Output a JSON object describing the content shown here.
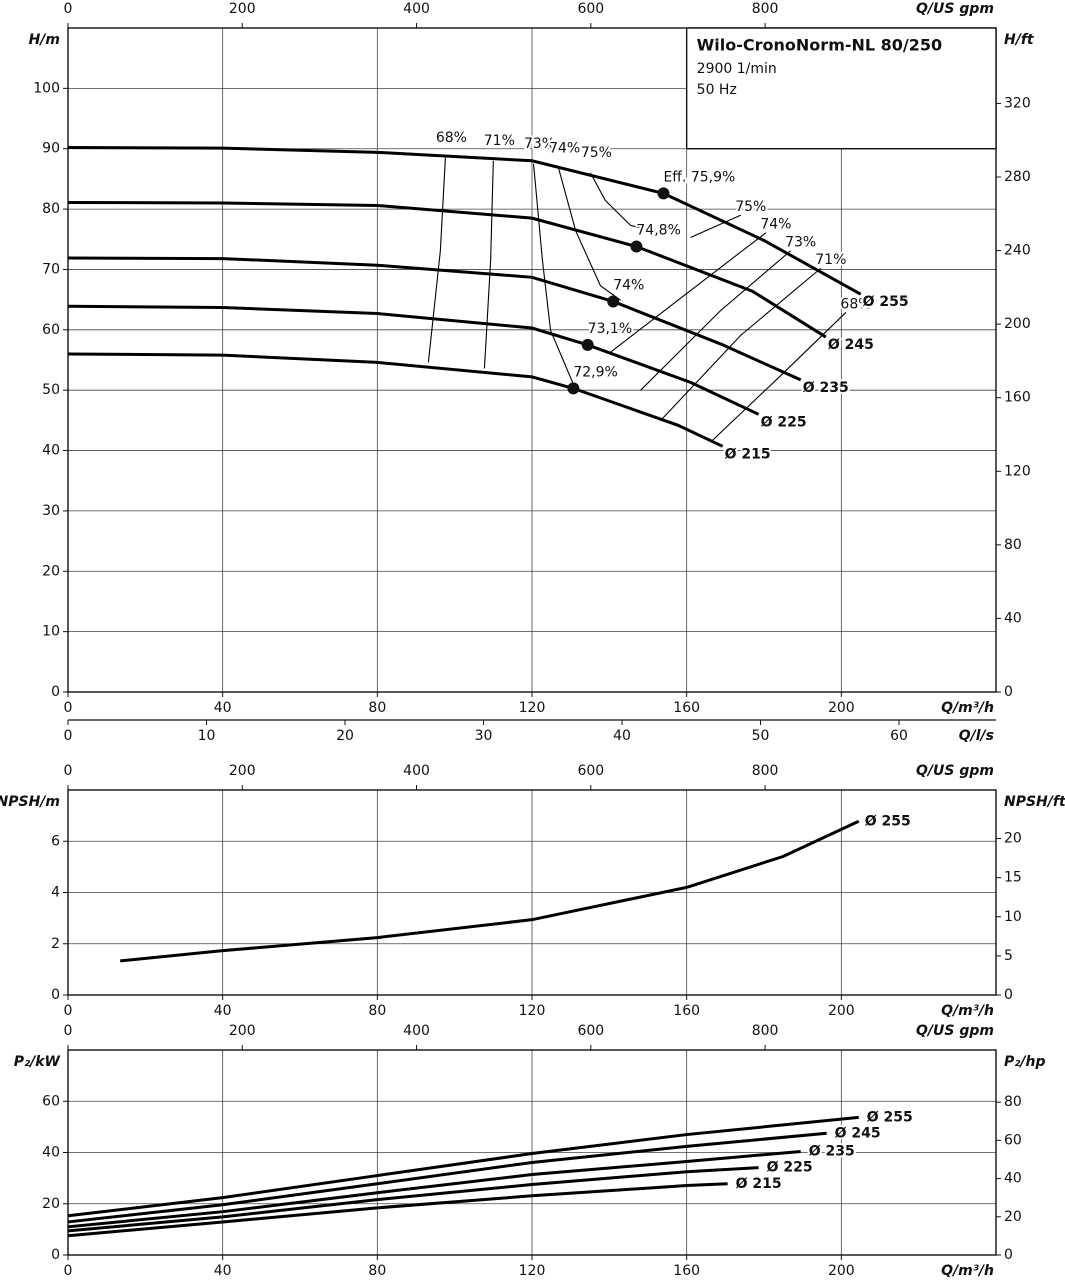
{
  "chart_data": [
    {
      "type": "line",
      "title": "Wilo-CronoNorm-NL 80/250",
      "speed": "2900 1/min",
      "frequency": "50 Hz",
      "xlabel": "Q/m³/h",
      "ylabel": "H/m",
      "x2label": "Q/US gpm",
      "x3label": "Q/l/s",
      "y2label": "H/ft",
      "xlim": [
        0,
        240
      ],
      "xticks": [
        0,
        40,
        80,
        120,
        160,
        200
      ],
      "x2lim": [
        0,
        1065
      ],
      "x2ticks": [
        0,
        200,
        400,
        600,
        800
      ],
      "x3lim": [
        0,
        67
      ],
      "x3ticks": [
        0,
        10,
        20,
        30,
        40,
        50,
        60
      ],
      "ylim": [
        0,
        110
      ],
      "yticks": [
        0,
        10,
        20,
        30,
        40,
        50,
        60,
        70,
        80,
        90,
        100
      ],
      "y2lim": [
        0,
        361
      ],
      "y2ticks": [
        0,
        40,
        80,
        120,
        160,
        200,
        240,
        280,
        320
      ],
      "grid": true,
      "color": "#000000",
      "series": [
        {
          "name": "Ø 255",
          "x": [
            0,
            40,
            80,
            120,
            154,
            180,
            205
          ],
          "values": [
            90.2,
            90.1,
            89.4,
            88,
            82.6,
            74.8,
            65.9
          ]
        },
        {
          "name": "Ø 245",
          "x": [
            0,
            40,
            80,
            120,
            147,
            177,
            196
          ],
          "values": [
            81.1,
            81,
            80.6,
            78.5,
            73.8,
            66.4,
            58.8
          ]
        },
        {
          "name": "Ø 235",
          "x": [
            0,
            40,
            80,
            120,
            141,
            169,
            189.5
          ],
          "values": [
            71.9,
            71.8,
            70.7,
            68.7,
            64.7,
            57.6,
            51.7
          ]
        },
        {
          "name": "Ø 225",
          "x": [
            0,
            40,
            80,
            120,
            134.4,
            161,
            178.6
          ],
          "values": [
            63.9,
            63.7,
            62.7,
            60.3,
            57.5,
            51.3,
            46
          ]
        },
        {
          "name": "Ø 215",
          "x": [
            0,
            40,
            80,
            120,
            130.7,
            157.7,
            169.3
          ],
          "values": [
            56,
            55.8,
            54.6,
            52.2,
            50.3,
            44.2,
            40.7
          ]
        }
      ],
      "bep": {
        "x": [
          154,
          147,
          141,
          134.4,
          130.7
        ],
        "values": [
          82.6,
          73.8,
          64.7,
          57.5,
          50.3
        ],
        "labels": [
          "Eff. 75,9%",
          "74,8%",
          "74%",
          "73,1%",
          "72,9%"
        ]
      },
      "efficiency_lines": [
        {
          "name": "68%",
          "x": [
            97.6,
            96.3,
            93.2
          ],
          "values": [
            88.5,
            73.1,
            54.6
          ]
        },
        {
          "name": "71%",
          "x": [
            110,
            109.3,
            107.7
          ],
          "values": [
            88,
            71.5,
            53.6
          ]
        },
        {
          "name": "73%",
          "x": [
            120.4,
            122.7,
            124.8,
            130.5
          ],
          "values": [
            87.5,
            71.5,
            59.9,
            51.3
          ]
        },
        {
          "name": "74%",
          "x": [
            126.9,
            131.3,
            137.7,
            142.9
          ],
          "values": [
            86.7,
            76.4,
            67.3,
            64.9
          ]
        },
        {
          "name": "75%",
          "x": [
            135.1,
            139,
            145.5,
            153.3
          ],
          "values": [
            86,
            81.4,
            77.3,
            76.1
          ]
        },
        {
          "name": "75%",
          "x": [
            161,
            174
          ],
          "values": [
            75.3,
            79
          ]
        },
        {
          "name": "74%",
          "x": [
            140.3,
            161,
            180.5
          ],
          "values": [
            56.3,
            66.5,
            76.1
          ]
        },
        {
          "name": "73%",
          "x": [
            148.1,
            168.8,
            186.9
          ],
          "values": [
            50,
            63.2,
            73.1
          ]
        },
        {
          "name": "71%",
          "x": [
            153.3,
            174,
            194.7
          ],
          "values": [
            45,
            59.1,
            70.2
          ]
        },
        {
          "name": "68%",
          "x": [
            166.7,
            184.3,
            201.2
          ],
          "values": [
            41.7,
            52.4,
            62.9
          ]
        }
      ]
    },
    {
      "type": "line",
      "xlabel": "Q/m³/h",
      "ylabel": "NPSH/m",
      "x2label": "Q/US gpm",
      "y2label": "NPSH/ft",
      "xlim": [
        0,
        240
      ],
      "xticks": [
        0,
        40,
        80,
        120,
        160,
        200
      ],
      "x2lim": [
        0,
        1065
      ],
      "x2ticks": [
        0,
        200,
        400,
        600,
        800
      ],
      "ylim": [
        0,
        8
      ],
      "yticks": [
        0,
        2,
        4,
        6
      ],
      "y2lim": [
        0,
        26.2
      ],
      "y2ticks": [
        0,
        5,
        10,
        15,
        20
      ],
      "grid": true,
      "color": "#000000",
      "series": [
        {
          "name": "Ø 255",
          "x": [
            13.5,
            40,
            80,
            120,
            160,
            185,
            204.5
          ],
          "values": [
            1.33,
            1.73,
            2.24,
            2.94,
            4.2,
            5.41,
            6.78
          ]
        }
      ]
    },
    {
      "type": "line",
      "xlabel": "Q/m³/h",
      "ylabel": "P₂/kW",
      "x2label": "Q/US gpm",
      "y2label": "P₂/hp",
      "xlim": [
        0,
        240
      ],
      "xticks": [
        0,
        40,
        80,
        120,
        160,
        200
      ],
      "x2lim": [
        0,
        1065
      ],
      "x2ticks": [
        0,
        200,
        400,
        600,
        800
      ],
      "ylim": [
        0,
        80
      ],
      "yticks": [
        0,
        20,
        40,
        60
      ],
      "y2lim": [
        0,
        107.3
      ],
      "y2ticks": [
        0,
        20,
        40,
        60,
        80
      ],
      "grid": true,
      "color": "#000000",
      "series": [
        {
          "name": "Ø 255",
          "x": [
            0,
            40,
            80,
            120,
            160,
            204.5
          ],
          "values": [
            15.3,
            22.4,
            31,
            39.6,
            47,
            53.7
          ]
        },
        {
          "name": "Ø 245",
          "x": [
            0,
            40,
            80,
            120,
            160,
            196.2
          ],
          "values": [
            12.9,
            19.6,
            27.8,
            36.1,
            42.4,
            47.5
          ]
        },
        {
          "name": "Ø 235",
          "x": [
            0,
            40,
            80,
            120,
            160,
            189.5
          ],
          "values": [
            11,
            16.9,
            24.3,
            31.4,
            36.5,
            40.4
          ]
        },
        {
          "name": "Ø 225",
          "x": [
            0,
            40,
            80,
            120,
            160,
            178.6
          ],
          "values": [
            9.4,
            14.9,
            21.6,
            27.5,
            32.5,
            34.1
          ]
        },
        {
          "name": "Ø 215",
          "x": [
            0,
            40,
            80,
            120,
            160,
            170.6
          ],
          "values": [
            7.5,
            12.9,
            18.4,
            23.1,
            27.1,
            27.8
          ]
        }
      ]
    }
  ]
}
